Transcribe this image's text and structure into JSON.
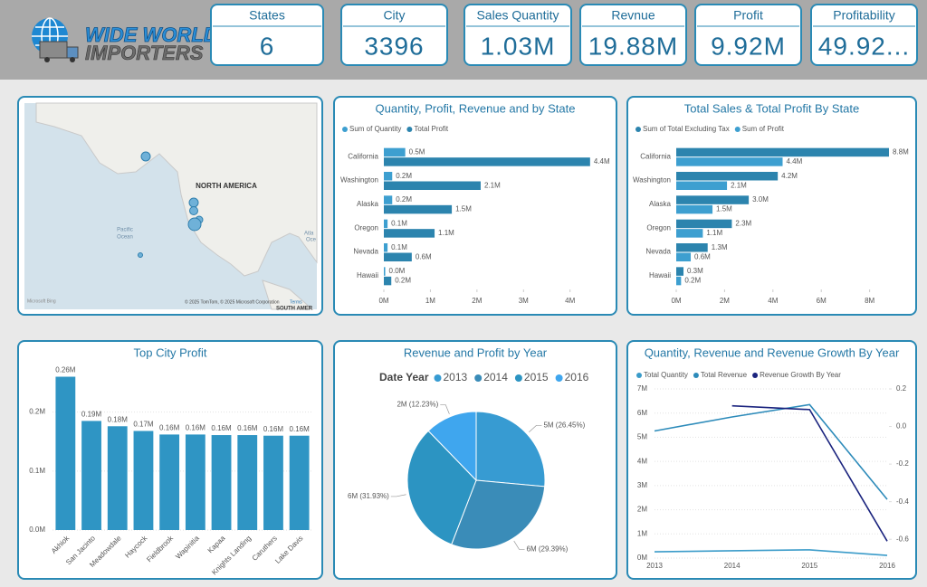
{
  "header": {
    "logo_top": "WIDE WORLD",
    "logo_bottom": "IMPORTERS"
  },
  "kpis": [
    {
      "label": "States",
      "value": 6
    },
    {
      "label": "City",
      "value": 3396
    },
    {
      "label": "Sales Quantity",
      "value": "1.03M"
    },
    {
      "label": "Revnue",
      "value": "19.88M"
    },
    {
      "label": "Profit",
      "value": "9.92M"
    },
    {
      "label": "Profitability",
      "value": "49.92..."
    }
  ],
  "map": {
    "continent": "NORTH AMERICA",
    "ocean_1": "Pacific",
    "ocean_2": "Ocean",
    "ocean_3": "Atla",
    "ocean_4": "Oce",
    "attribution": "© 2025 TomTom, © 2025 Microsoft Corporation",
    "terms": "Terms",
    "corner": "SOUTH AMER",
    "brand": "Microsoft Bing"
  },
  "chart_data": [
    {
      "type": "hbar",
      "title": "Quantity, Profit, Revenue and by State",
      "categories": [
        "California",
        "Washington",
        "Alaska",
        "Oregon",
        "Nevada",
        "Hawaii"
      ],
      "series": [
        {
          "name": "Sum of Quantity",
          "color": "#3d9fd0",
          "values": [
            0.46,
            0.18,
            0.18,
            0.08,
            0.08,
            0.03
          ],
          "value_labels": [
            "0.5M",
            "0.2M",
            "0.2M",
            "0.1M",
            "0.1M",
            "0.0M"
          ]
        },
        {
          "name": "Total Profit",
          "color": "#2c84ae",
          "values": [
            4.43,
            2.08,
            1.46,
            1.09,
            0.6,
            0.16
          ],
          "value_labels": [
            "4.4M",
            "2.1M",
            "1.5M",
            "1.1M",
            "0.6M",
            "0.2M"
          ]
        }
      ],
      "xlim": [
        0,
        4.55
      ],
      "xticks": [
        {
          "value": 0,
          "label": "0M"
        },
        {
          "value": 1,
          "label": "1M"
        },
        {
          "value": 2,
          "label": "2M"
        },
        {
          "value": 3,
          "label": "3M"
        },
        {
          "value": 4,
          "label": "4M"
        }
      ]
    },
    {
      "type": "hbar",
      "title": "Total Sales & Total Profit By State",
      "categories": [
        "California",
        "Washington",
        "Alaska",
        "Oregon",
        "Nevada",
        "Hawaii"
      ],
      "series": [
        {
          "name": "Sum of Total Excluding Tax",
          "color": "#2c84ae",
          "values": [
            8.8,
            4.2,
            3.0,
            2.3,
            1.3,
            0.3
          ],
          "value_labels": [
            "8.8M",
            "4.2M",
            "3.0M",
            "2.3M",
            "1.3M",
            "0.3M"
          ]
        },
        {
          "name": "Sum of Profit",
          "color": "#3d9fd0",
          "values": [
            4.4,
            2.1,
            1.5,
            1.1,
            0.6,
            0.2
          ],
          "value_labels": [
            "4.4M",
            "2.1M",
            "1.5M",
            "1.1M",
            "0.6M",
            "0.2M"
          ]
        }
      ],
      "xlim": [
        0,
        9.1
      ],
      "xticks": [
        {
          "value": 0,
          "label": "0M"
        },
        {
          "value": 2,
          "label": "2M"
        },
        {
          "value": 4,
          "label": "4M"
        },
        {
          "value": 6,
          "label": "6M"
        },
        {
          "value": 8,
          "label": "8M"
        }
      ]
    },
    {
      "type": "vbar",
      "title": "Top City Profit",
      "color": "#2f95c4",
      "grid": true,
      "categories": [
        "Akhiok",
        "San Jacinto",
        "Meadowdale",
        "Haycock",
        "Fieldbrook",
        "Wapinitia",
        "Kapaa",
        "Knights Landing",
        "Caruthers",
        "Lake Davis"
      ],
      "values": [
        0.26,
        0.185,
        0.176,
        0.168,
        0.162,
        0.162,
        0.161,
        0.161,
        0.16,
        0.16
      ],
      "value_labels": [
        "0.26M",
        "0.19M",
        "0.18M",
        "0.17M",
        "0.16M",
        "0.16M",
        "0.16M",
        "0.16M",
        "0.16M",
        "0.16M"
      ],
      "ylim": [
        0,
        0.27
      ],
      "yticks": [
        {
          "value": 0,
          "label": "0.0M"
        },
        {
          "value": 0.1,
          "label": "0.1M"
        },
        {
          "value": 0.2,
          "label": "0.2M"
        }
      ]
    },
    {
      "type": "pie",
      "title": "Revenue and Profit by Year",
      "legend_title": "Date Year",
      "categories": [
        "2013",
        "2014",
        "2015",
        "2016"
      ],
      "values": [
        26.45,
        29.39,
        31.93,
        12.23
      ],
      "value_labels": [
        "5M (26.45%)",
        "6M (29.39%)",
        "6M (31.93%)",
        "2M (12.23%)"
      ],
      "colors": [
        "#379bd2",
        "#3a8cb8",
        "#2c94c2",
        "#3fa6ee"
      ]
    },
    {
      "type": "line",
      "title": "Quantity, Revenue and Revenue Growth By Year",
      "grid": true,
      "categories": [
        "2013",
        "2014",
        "2015",
        "2016"
      ],
      "series": [
        {
          "name": "Total Quantity",
          "color": "#3a9bc9",
          "values": [
            0.26,
            0.3,
            0.34,
            0.11
          ]
        },
        {
          "name": "Total Revenue",
          "color": "#2d8bba",
          "values": [
            5.26,
            5.84,
            6.35,
            2.43
          ]
        },
        {
          "name": "Revenue Growth By Year",
          "color": "#1a237e",
          "axis": "y2",
          "values": [
            null,
            0.11,
            0.09,
            -0.61
          ]
        }
      ],
      "ylim": [
        0,
        7
      ],
      "yticks": [
        {
          "value": 0,
          "label": "0M"
        },
        {
          "value": 1,
          "label": "1M"
        },
        {
          "value": 2,
          "label": "2M"
        },
        {
          "value": 3,
          "label": "3M"
        },
        {
          "value": 4,
          "label": "4M"
        },
        {
          "value": 5,
          "label": "5M"
        },
        {
          "value": 6,
          "label": "6M"
        },
        {
          "value": 7,
          "label": "7M"
        }
      ],
      "y2lim": [
        -0.7,
        0.2
      ],
      "y2ticks": [
        0.2,
        {
          "value": 0,
          "label": "0.0"
        },
        -0.2,
        -0.4,
        -0.6
      ]
    }
  ]
}
